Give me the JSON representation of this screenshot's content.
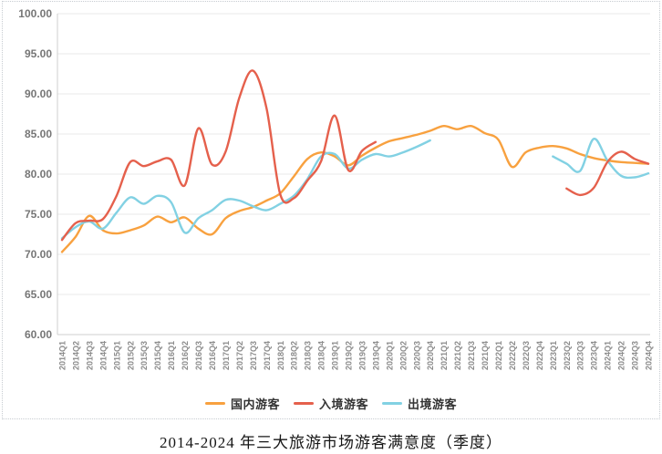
{
  "figure": {
    "caption": "2014-2024 年三大旅游市场游客满意度（季度）"
  },
  "chart_data": {
    "type": "line",
    "title": "2014-2024 年三大旅游市场游客满意度（季度）",
    "grid": "horizontal",
    "legend_position": "bottom",
    "x_labels": [
      "2014Q1",
      "2014Q2",
      "2014Q3",
      "2014Q4",
      "2015Q1",
      "2015Q2",
      "2015Q3",
      "2015Q4",
      "2016Q1",
      "2016Q2",
      "2016Q3",
      "2016Q4",
      "2017Q1",
      "2017Q2",
      "2017Q3",
      "2017Q4",
      "2018Q1",
      "2018Q2",
      "2018Q3",
      "2018Q4",
      "2019Q1",
      "2019Q2",
      "2019Q3",
      "2019Q4",
      "2020Q1",
      "2020Q2",
      "2020Q3",
      "2020Q4",
      "2021Q1",
      "2021Q2",
      "2021Q3",
      "2021Q4",
      "2022Q1",
      "2022Q2",
      "2022Q3",
      "2022Q4",
      "2023Q1",
      "2023Q2",
      "2023Q3",
      "2023Q4",
      "2024Q1",
      "2024Q2",
      "2024Q3",
      "2024Q4"
    ],
    "y_axis": {
      "min": 60,
      "max": 100,
      "step": 5,
      "tick_labels": [
        "100.00",
        "95.00",
        "90.00",
        "85.00",
        "80.00",
        "75.00",
        "70.00",
        "65.00",
        "60.00"
      ]
    },
    "series": [
      {
        "name": "国内游客",
        "color": "#F8A13F",
        "segments": [
          {
            "start": 0,
            "values": [
              70.3,
              72.2,
              74.8,
              73.0,
              72.6,
              73.0,
              73.6,
              74.7,
              74.0,
              74.6,
              73.2,
              72.5,
              74.5,
              75.4,
              75.9,
              76.7,
              77.6,
              79.7,
              81.9,
              82.7,
              82.2,
              81.1,
              82.3,
              83.3,
              84.1,
              84.5,
              84.9,
              85.4,
              86.0,
              85.6,
              86.0,
              85.1,
              84.3,
              80.9,
              82.7,
              83.3,
              83.5,
              83.2,
              82.5,
              82.0,
              81.7,
              81.5,
              81.4,
              81.3
            ]
          }
        ]
      },
      {
        "name": "入境游客",
        "color": "#E5604C",
        "segments": [
          {
            "start": 0,
            "values": [
              71.8,
              73.9,
              74.2,
              74.4,
              77.3,
              81.5,
              81.0,
              81.6,
              81.8,
              78.6,
              85.7,
              81.2,
              82.8,
              89.5,
              92.9,
              88.2,
              77.5,
              77.0,
              79.2,
              81.6,
              87.3,
              80.5,
              82.9,
              84.0
            ]
          },
          {
            "start": 37,
            "values": [
              78.2,
              77.4,
              78.3,
              81.5,
              82.8,
              81.9,
              81.3
            ]
          }
        ]
      },
      {
        "name": "出境游客",
        "color": "#82D1E3",
        "segments": [
          {
            "start": 0,
            "values": [
              72.0,
              73.4,
              74.1,
              73.2,
              75.2,
              77.1,
              76.3,
              77.3,
              76.5,
              72.7,
              74.5,
              75.5,
              76.8,
              76.7,
              76.0,
              75.5,
              76.3,
              77.3,
              79.4,
              82.2,
              82.5,
              80.7,
              81.8,
              82.5,
              82.2,
              82.7,
              83.4,
              84.2
            ]
          },
          {
            "start": 36,
            "values": [
              82.2,
              81.3,
              80.4,
              84.4,
              81.7,
              79.8,
              79.6,
              80.1
            ]
          }
        ]
      }
    ]
  }
}
